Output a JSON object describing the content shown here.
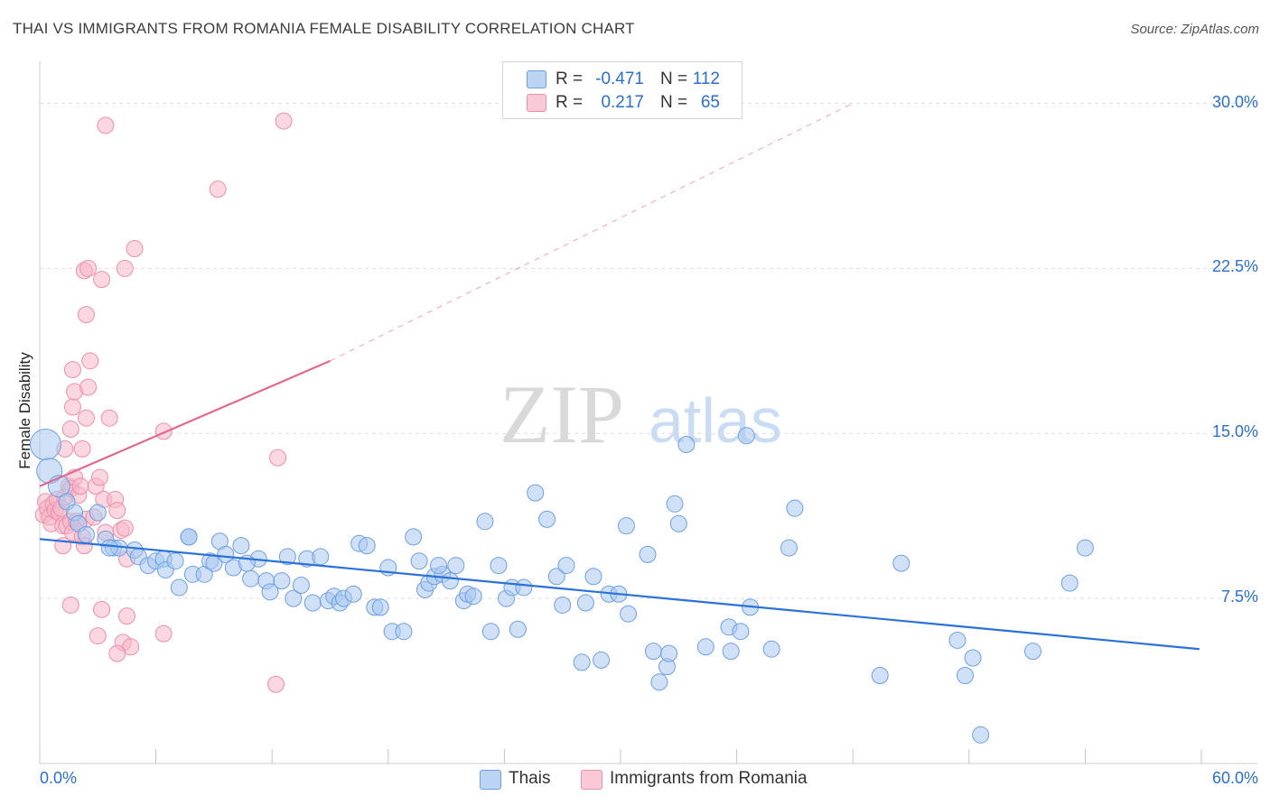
{
  "title": "THAI VS IMMIGRANTS FROM ROMANIA FEMALE DISABILITY CORRELATION CHART",
  "source": "Source: ZipAtlas.com",
  "watermark": {
    "zip": "ZIP",
    "atlas": "atlas"
  },
  "legend": {
    "rows": [
      {
        "r_label": "R =",
        "r_value": "-0.471",
        "n_label": "N =",
        "n_value": "112",
        "color": "#a9c8f0"
      },
      {
        "r_label": "R =",
        "r_value": "0.217",
        "n_label": "N =",
        "n_value": "65",
        "color": "#f7b6c8"
      }
    ]
  },
  "bottom_legend": [
    {
      "label": "Thais",
      "color": "#a9c8f0"
    },
    {
      "label": "Immigrants from Romania",
      "color": "#f7b6c8"
    }
  ],
  "colors": {
    "thai_fill": "#a9c8f0",
    "thai_stroke": "#6d9fe0",
    "thai_line": "#2b72d8",
    "romania_fill": "#f7b6c8",
    "romania_stroke": "#ec8fab",
    "romania_line": "#e4678f",
    "grid": "#dedede",
    "tick_text": "#2a6fd1"
  },
  "chart_data": {
    "type": "scatter",
    "title": "THAI VS IMMIGRANTS FROM ROMANIA FEMALE DISABILITY CORRELATION CHART",
    "xlabel": "",
    "ylabel": "Female Disability",
    "xlim": [
      0,
      60
    ],
    "ylim": [
      0,
      31.5
    ],
    "x_tick_labels": [
      "0.0%",
      "60.0%"
    ],
    "y_ticks": [
      7.5,
      15.0,
      22.5,
      30.0
    ],
    "y_tick_labels": [
      "7.5%",
      "15.0%",
      "22.5%",
      "30.0%"
    ],
    "grid": "horizontal dashed",
    "series": [
      {
        "name": "Thais",
        "trend": {
          "x": [
            0.0,
            59.9
          ],
          "y": [
            10.2,
            5.2
          ],
          "style": "solid"
        },
        "points": [
          [
            0.3,
            14.5
          ],
          [
            0.5,
            13.3
          ],
          [
            1.0,
            12.6
          ],
          [
            1.4,
            11.9
          ],
          [
            1.8,
            11.4
          ],
          [
            2.0,
            10.9
          ],
          [
            2.4,
            10.4
          ],
          [
            3.0,
            11.4
          ],
          [
            3.4,
            10.2
          ],
          [
            3.8,
            9.8
          ],
          [
            4.1,
            9.8
          ],
          [
            4.9,
            9.7
          ],
          [
            5.1,
            9.4
          ],
          [
            5.6,
            9.0
          ],
          [
            6.0,
            9.2
          ],
          [
            6.4,
            9.3
          ],
          [
            6.5,
            8.8
          ],
          [
            7.0,
            9.2
          ],
          [
            7.2,
            8.0
          ],
          [
            7.7,
            10.3
          ],
          [
            7.9,
            8.6
          ],
          [
            8.5,
            8.6
          ],
          [
            8.8,
            9.2
          ],
          [
            9.0,
            9.1
          ],
          [
            9.3,
            10.1
          ],
          [
            9.6,
            9.5
          ],
          [
            10.0,
            8.9
          ],
          [
            10.4,
            9.9
          ],
          [
            10.9,
            8.4
          ],
          [
            11.3,
            9.3
          ],
          [
            11.7,
            8.3
          ],
          [
            11.9,
            7.8
          ],
          [
            12.5,
            8.3
          ],
          [
            12.8,
            9.4
          ],
          [
            13.1,
            7.5
          ],
          [
            13.5,
            8.1
          ],
          [
            13.8,
            9.3
          ],
          [
            14.1,
            7.3
          ],
          [
            14.5,
            9.4
          ],
          [
            14.9,
            7.4
          ],
          [
            15.2,
            7.6
          ],
          [
            15.5,
            7.3
          ],
          [
            15.7,
            7.5
          ],
          [
            16.2,
            7.7
          ],
          [
            16.5,
            10.0
          ],
          [
            16.9,
            9.9
          ],
          [
            17.3,
            7.1
          ],
          [
            17.6,
            7.1
          ],
          [
            18.0,
            8.9
          ],
          [
            18.2,
            6.0
          ],
          [
            18.8,
            6.0
          ],
          [
            19.3,
            10.3
          ],
          [
            19.6,
            9.2
          ],
          [
            19.9,
            7.9
          ],
          [
            20.1,
            8.2
          ],
          [
            20.4,
            8.5
          ],
          [
            20.8,
            8.6
          ],
          [
            21.2,
            8.3
          ],
          [
            21.5,
            9.0
          ],
          [
            21.9,
            7.4
          ],
          [
            22.1,
            7.7
          ],
          [
            22.4,
            7.6
          ],
          [
            23.0,
            11.0
          ],
          [
            23.3,
            6.0
          ],
          [
            23.7,
            9.0
          ],
          [
            24.1,
            7.5
          ],
          [
            24.4,
            8.0
          ],
          [
            24.7,
            6.1
          ],
          [
            25.0,
            8.0
          ],
          [
            25.6,
            12.3
          ],
          [
            26.2,
            11.1
          ],
          [
            26.7,
            8.5
          ],
          [
            27.0,
            7.2
          ],
          [
            27.2,
            9.0
          ],
          [
            28.0,
            4.6
          ],
          [
            28.2,
            7.3
          ],
          [
            28.6,
            8.5
          ],
          [
            29.0,
            4.7
          ],
          [
            29.4,
            7.7
          ],
          [
            29.9,
            7.7
          ],
          [
            30.4,
            6.8
          ],
          [
            30.3,
            10.8
          ],
          [
            31.4,
            9.5
          ],
          [
            31.7,
            5.1
          ],
          [
            32.0,
            3.7
          ],
          [
            32.4,
            4.4
          ],
          [
            32.5,
            5.0
          ],
          [
            32.8,
            11.8
          ],
          [
            33.0,
            10.9
          ],
          [
            33.4,
            14.5
          ],
          [
            34.4,
            5.3
          ],
          [
            35.6,
            6.2
          ],
          [
            35.7,
            5.1
          ],
          [
            36.2,
            6.0
          ],
          [
            36.5,
            14.9
          ],
          [
            36.7,
            7.1
          ],
          [
            37.8,
            5.2
          ],
          [
            38.7,
            9.8
          ],
          [
            39.0,
            11.6
          ],
          [
            43.4,
            4.0
          ],
          [
            44.5,
            9.1
          ],
          [
            47.4,
            5.6
          ],
          [
            47.8,
            4.0
          ],
          [
            48.2,
            4.8
          ],
          [
            48.6,
            1.3
          ],
          [
            51.3,
            5.1
          ],
          [
            53.2,
            8.2
          ],
          [
            54.0,
            9.8
          ],
          [
            7.7,
            10.3
          ],
          [
            3.6,
            9.8
          ],
          [
            10.7,
            9.1
          ],
          [
            20.6,
            9.0
          ]
        ]
      },
      {
        "name": "Immigrants from Romania",
        "trend": {
          "x": [
            0.0,
            15.0
          ],
          "y": [
            12.6,
            18.3
          ],
          "style": "solid",
          "dashed_extension_to": [
            42.0,
            30.0
          ]
        },
        "points": [
          [
            0.2,
            11.3
          ],
          [
            0.3,
            11.9
          ],
          [
            0.4,
            11.6
          ],
          [
            0.5,
            11.2
          ],
          [
            0.6,
            10.9
          ],
          [
            0.7,
            11.8
          ],
          [
            0.8,
            11.5
          ],
          [
            0.9,
            12.0
          ],
          [
            1.0,
            11.4
          ],
          [
            1.1,
            11.6
          ],
          [
            1.2,
            10.8
          ],
          [
            1.3,
            12.1
          ],
          [
            1.4,
            10.8
          ],
          [
            1.5,
            12.6
          ],
          [
            1.6,
            11.0
          ],
          [
            1.2,
            9.9
          ],
          [
            1.6,
            12.5
          ],
          [
            1.7,
            10.5
          ],
          [
            1.8,
            13.0
          ],
          [
            1.9,
            11.0
          ],
          [
            2.0,
            12.2
          ],
          [
            2.1,
            12.6
          ],
          [
            2.2,
            10.3
          ],
          [
            2.3,
            9.9
          ],
          [
            2.4,
            11.1
          ],
          [
            1.3,
            14.3
          ],
          [
            1.6,
            15.2
          ],
          [
            1.7,
            16.2
          ],
          [
            1.8,
            16.9
          ],
          [
            1.7,
            17.9
          ],
          [
            2.2,
            14.3
          ],
          [
            2.4,
            15.7
          ],
          [
            2.5,
            17.1
          ],
          [
            2.6,
            18.3
          ],
          [
            2.4,
            20.4
          ],
          [
            2.8,
            11.2
          ],
          [
            2.9,
            12.6
          ],
          [
            3.1,
            13.0
          ],
          [
            3.3,
            12.0
          ],
          [
            3.4,
            10.5
          ],
          [
            3.6,
            15.7
          ],
          [
            3.9,
            12.0
          ],
          [
            4.0,
            11.5
          ],
          [
            4.2,
            10.6
          ],
          [
            4.4,
            10.7
          ],
          [
            4.5,
            9.3
          ],
          [
            2.3,
            22.4
          ],
          [
            2.5,
            22.5
          ],
          [
            3.2,
            22.0
          ],
          [
            4.4,
            22.5
          ],
          [
            4.9,
            23.4
          ],
          [
            3.4,
            29.0
          ],
          [
            12.6,
            29.2
          ],
          [
            9.2,
            26.1
          ],
          [
            6.4,
            15.1
          ],
          [
            12.3,
            13.9
          ],
          [
            1.6,
            7.2
          ],
          [
            3.2,
            7.0
          ],
          [
            4.5,
            6.7
          ],
          [
            3.0,
            5.8
          ],
          [
            4.3,
            5.5
          ],
          [
            4.7,
            5.3
          ],
          [
            6.4,
            5.9
          ],
          [
            4.0,
            5.0
          ],
          [
            12.2,
            3.6
          ]
        ]
      }
    ]
  }
}
